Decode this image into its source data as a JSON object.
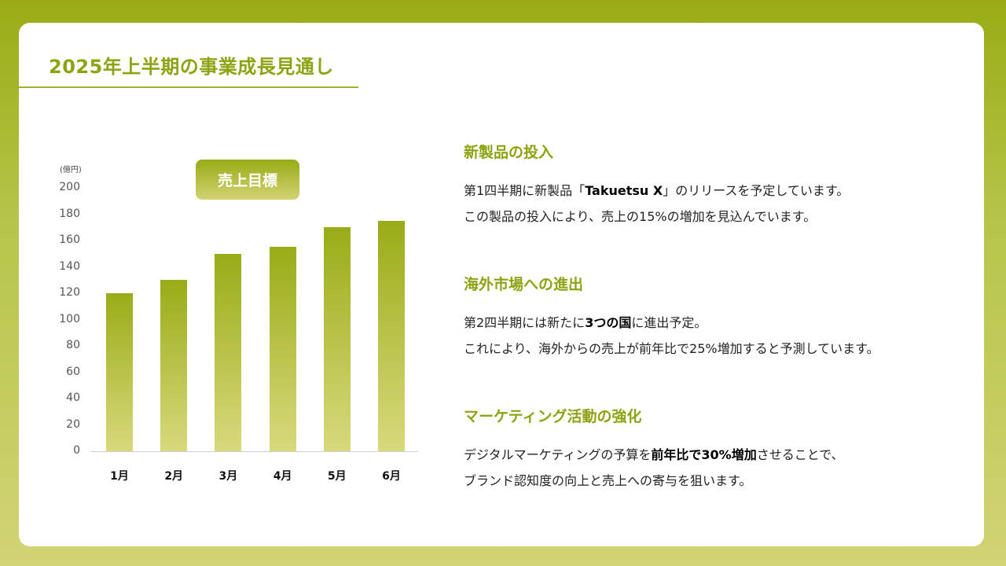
{
  "title": "2025年上半期の事業成長見通し",
  "chart_data": {
    "type": "bar",
    "unit_label": "(億円)",
    "legend": "売上目標",
    "categories": [
      "1月",
      "2月",
      "3月",
      "4月",
      "5月",
      "6月"
    ],
    "series": [
      {
        "name": "売上目標",
        "values": [
          120,
          130,
          150,
          155,
          170,
          175
        ]
      }
    ],
    "ylim": [
      0,
      200
    ],
    "yticks": [
      0,
      20,
      40,
      60,
      80,
      100,
      120,
      140,
      160,
      180,
      200
    ],
    "bar_color_top": "#99ac17",
    "bar_color_bottom": "#d8d97c"
  },
  "sections": [
    {
      "heading": "新製品の投入",
      "line1": {
        "a": "第1四半期に新製品「",
        "b": "Takuetsu X",
        "c": "」のリリースを予定しています。"
      },
      "line2": "この製品の投入により、売上の15%の増加を見込んでいます。"
    },
    {
      "heading": "海外市場への進出",
      "line1": {
        "a": "第2四半期には新たに",
        "b": "3つの国",
        "c": "に進出予定。"
      },
      "line2": "これにより、海外からの売上が前年比で25%増加すると予測しています。"
    },
    {
      "heading": "マーケティング活動の強化",
      "line1": {
        "a": "デジタルマーケティングの予算を",
        "b": "前年比で30%増加",
        "c": "させることで、"
      },
      "line2": "ブランド認知度の向上と売上への寄与を狙います。"
    }
  ],
  "colors": {
    "accent": "#8ea212",
    "background_top": "#9aab16",
    "background_bottom": "#d2d375"
  }
}
